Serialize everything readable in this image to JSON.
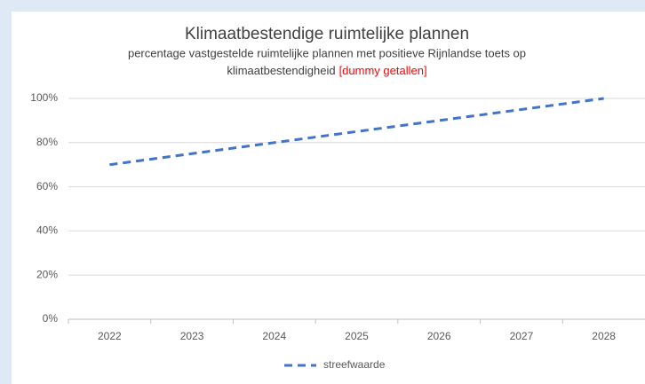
{
  "chart_data": {
    "type": "line",
    "title": "Klimaatbestendige ruimtelijke plannen",
    "subtitle": [
      "percentage vastgestelde ruimtelijke plannen met positieve Rijnlandse toets op",
      "klimaatbestendigheid"
    ],
    "annotation": "[dummy getallen]",
    "categories": [
      "2022",
      "2023",
      "2024",
      "2025",
      "2026",
      "2027",
      "2028"
    ],
    "series": [
      {
        "name": "streefwaarde",
        "color": "#4472c4",
        "values": [
          70,
          75,
          80,
          85,
          90,
          95,
          100
        ]
      }
    ],
    "ylim": [
      0,
      100
    ],
    "yticks": [
      {
        "value": 0,
        "label": "0%"
      },
      {
        "value": 20,
        "label": "20%"
      },
      {
        "value": 40,
        "label": "40%"
      },
      {
        "value": 60,
        "label": "60%"
      },
      {
        "value": 80,
        "label": "80%"
      },
      {
        "value": 100,
        "label": "100%"
      }
    ],
    "grid": true,
    "legend": "bottom"
  }
}
